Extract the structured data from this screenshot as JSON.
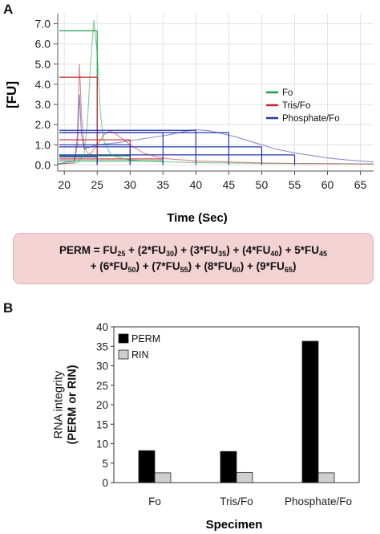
{
  "panels": {
    "a": {
      "letter": "A"
    },
    "b": {
      "letter": "B"
    }
  },
  "formula": {
    "lhs": "PERM =",
    "line1": [
      {
        "prefix": " FU",
        "sub": "25",
        "suffix": ""
      },
      {
        "prefix": " + (2*FU",
        "sub": "30",
        "suffix": ")"
      },
      {
        "prefix": " + (3*FU",
        "sub": "35",
        "suffix": ")"
      },
      {
        "prefix": " + (4*FU",
        "sub": "40",
        "suffix": ")"
      },
      {
        "prefix": " + 5*FU",
        "sub": "45",
        "suffix": ""
      }
    ],
    "line2": [
      {
        "prefix": "+ (6*FU",
        "sub": "50",
        "suffix": ")"
      },
      {
        "prefix": " + (7*FU",
        "sub": "55",
        "suffix": ")"
      },
      {
        "prefix": " + (8*FU",
        "sub": "60",
        "suffix": ")"
      },
      {
        "prefix": " + (9*FU",
        "sub": "65",
        "suffix": ")"
      }
    ]
  },
  "chart_data": [
    {
      "type": "line",
      "xlabel": "Time (Sec)",
      "ylabel": "[FU]",
      "xlim": [
        19,
        67
      ],
      "ylim": [
        -0.3,
        7.5
      ],
      "x_ticks": [
        "20",
        "25",
        "30",
        "35",
        "40",
        "45",
        "50",
        "55",
        "60",
        "65"
      ],
      "y_ticks": [
        "0.0",
        "1.0",
        "2.0",
        "3.0",
        "4.0",
        "5.0",
        "6.0",
        "7.0"
      ],
      "grid": true,
      "legend_position": "right",
      "series": [
        {
          "name": "Fo",
          "color": "#1e9e4a",
          "x": [
            19,
            22,
            23,
            23.5,
            24,
            24.5,
            25,
            25.5,
            26,
            27,
            28,
            29,
            30,
            32,
            34,
            36,
            40,
            45,
            50,
            55,
            60,
            65,
            67
          ],
          "y": [
            0.05,
            0.1,
            0.5,
            2.0,
            5.0,
            7.2,
            5.5,
            2.5,
            1.2,
            0.55,
            0.4,
            0.3,
            0.25,
            0.2,
            0.18,
            0.15,
            0.12,
            0.1,
            0.08,
            0.07,
            0.06,
            0.05,
            0.05
          ],
          "perm_points": [
            {
              "x": 25,
              "y": 6.65
            },
            {
              "x": 30,
              "y": 0.45
            },
            {
              "x": 35,
              "y": 0.2
            }
          ]
        },
        {
          "name": "Tris/Fo",
          "color": "#c0282d",
          "x": [
            19,
            21.5,
            22,
            22.3,
            22.6,
            23,
            23.5,
            24,
            25,
            26,
            27,
            28,
            30,
            32,
            34,
            36,
            40,
            45,
            50,
            55,
            60,
            65,
            67
          ],
          "y": [
            0.05,
            0.1,
            1.5,
            5.0,
            2.5,
            1.0,
            0.6,
            0.55,
            1.0,
            1.5,
            1.7,
            1.5,
            1.0,
            0.6,
            0.4,
            0.3,
            0.2,
            0.15,
            0.1,
            0.08,
            0.07,
            0.06,
            0.05
          ],
          "perm_points": [
            {
              "x": 25,
              "y": 4.35
            },
            {
              "x": 30,
              "y": 1.25
            },
            {
              "x": 35,
              "y": 0.3
            }
          ]
        },
        {
          "name": "Phosphate/Fo",
          "color": "#2434b0",
          "x": [
            19,
            21.5,
            22,
            22.3,
            22.6,
            23,
            24,
            25,
            28,
            30,
            33,
            36,
            38,
            40,
            42,
            44,
            46,
            48,
            50,
            52,
            55,
            58,
            60,
            63,
            65,
            67
          ],
          "y": [
            0.05,
            0.2,
            1.0,
            3.5,
            1.5,
            0.8,
            0.9,
            1.0,
            1.1,
            1.2,
            1.35,
            1.5,
            1.65,
            1.75,
            1.7,
            1.55,
            1.4,
            1.2,
            1.0,
            0.8,
            0.6,
            0.45,
            0.35,
            0.25,
            0.2,
            0.15
          ],
          "perm_points": [
            {
              "x": 25,
              "y": 0.4
            },
            {
              "x": 30,
              "y": 1.0
            },
            {
              "x": 35,
              "y": 1.6
            },
            {
              "x": 40,
              "y": 1.72
            },
            {
              "x": 45,
              "y": 1.6
            },
            {
              "x": 50,
              "y": 0.9
            },
            {
              "x": 55,
              "y": 0.5
            }
          ]
        }
      ]
    },
    {
      "type": "bar",
      "categories": [
        "Fo",
        "Tris/Fo",
        "Phosphate/Fo"
      ],
      "xlabel": "Specimen",
      "ylabel_lines": [
        "RNA integrity",
        "(PERM or RIN)"
      ],
      "ylim": [
        0,
        40
      ],
      "y_ticks": [
        "0",
        "5",
        "10",
        "15",
        "20",
        "25",
        "30",
        "35",
        "40"
      ],
      "grid": false,
      "legend_position": "top-left",
      "series": [
        {
          "name": "PERM",
          "color": "#000000",
          "values": [
            8.2,
            8.0,
            36.3
          ]
        },
        {
          "name": "RIN",
          "color": "#cfcfcf",
          "values": [
            2.5,
            2.6,
            2.5
          ]
        }
      ]
    }
  ]
}
